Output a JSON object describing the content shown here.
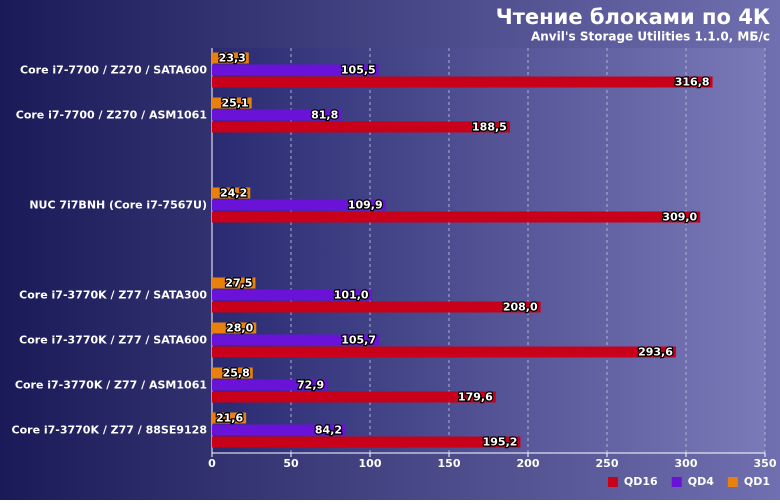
{
  "chart_data": {
    "type": "hbar",
    "title": "Чтение блоками по 4К",
    "subtitle": "Anvil's Storage Utilities 1.1.0, МБ/с",
    "categories": [
      "Core i7-7700 / Z270 / SATA600",
      "Core i7-7700 / Z270 / ASM1061",
      null,
      "NUC 7i7BNH (Core i7-7567U)",
      null,
      "Core i7-3770K / Z77 / SATA300",
      "Core i7-3770K / Z77 / SATA600",
      "Core i7-3770K / Z77 / ASM1061",
      "Core i7-3770K / Z77 / 88SE9128"
    ],
    "series": [
      {
        "name": "QD16",
        "color": "#c8001a",
        "values": [
          316.8,
          188.5,
          null,
          309.0,
          null,
          208.0,
          293.6,
          179.6,
          195.2
        ],
        "value_labels": [
          "316,8",
          "188,5",
          null,
          "309,0",
          null,
          "208,0",
          "293,6",
          "179,6",
          "195,2"
        ]
      },
      {
        "name": "QD4",
        "color": "#6a12d8",
        "values": [
          105.5,
          81.8,
          null,
          109.9,
          null,
          101.0,
          105.7,
          72.9,
          84.2
        ],
        "value_labels": [
          "105,5",
          "81,8",
          null,
          "109,9",
          null,
          "101,0",
          "105,7",
          "72,9",
          "84,2"
        ]
      },
      {
        "name": "QD1",
        "color": "#e8800e",
        "values": [
          23.3,
          25.1,
          null,
          24.2,
          null,
          27.5,
          28.0,
          25.8,
          21.6
        ],
        "value_labels": [
          "23,3",
          "25,1",
          null,
          "24,2",
          null,
          "27,5",
          "28,0",
          "25,8",
          "21,6"
        ]
      }
    ],
    "xlim": [
      0,
      350
    ],
    "xticks": [
      0,
      50,
      100,
      150,
      200,
      250,
      300,
      350
    ],
    "grid": true,
    "legend": "bottom-right"
  }
}
